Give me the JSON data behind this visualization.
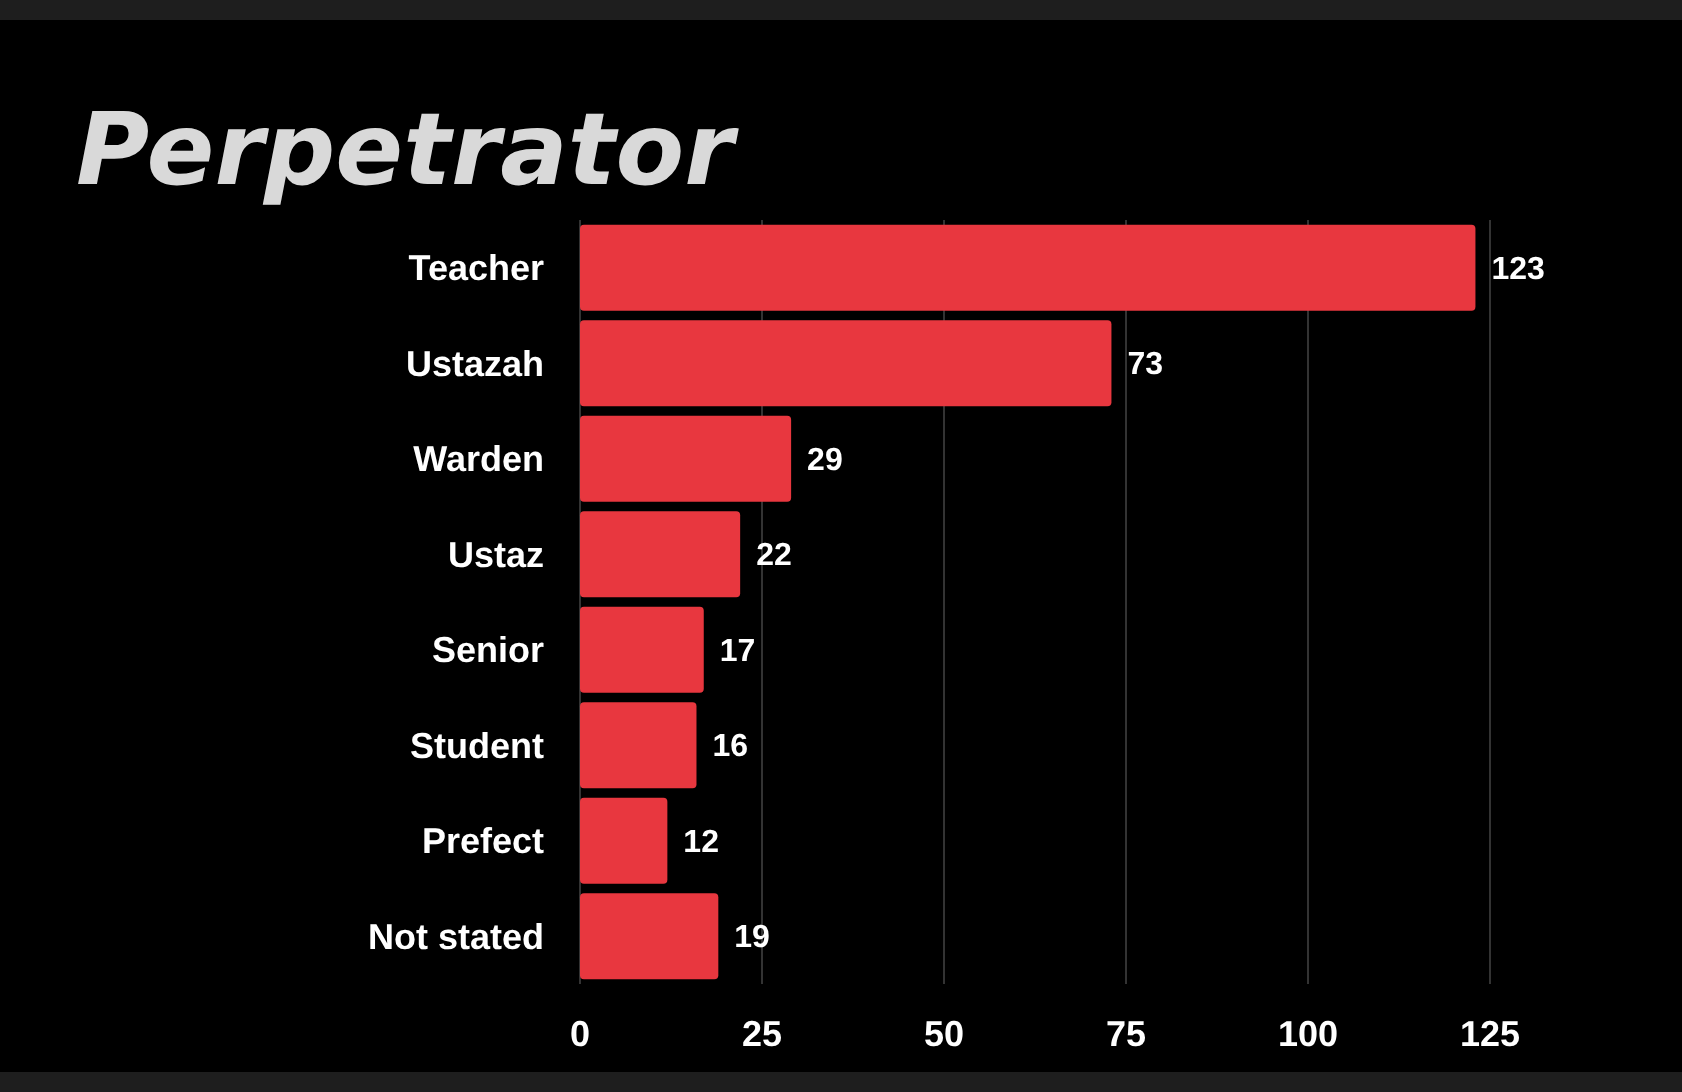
{
  "chart_data": {
    "type": "bar",
    "orientation": "horizontal",
    "title": "Perpetrator",
    "categories": [
      "Teacher",
      "Ustazah",
      "Warden",
      "Ustaz",
      "Senior",
      "Student",
      "Prefect",
      "Not stated"
    ],
    "values": [
      123,
      73,
      29,
      22,
      17,
      16,
      12,
      19
    ],
    "color": "#e8373f",
    "data_labels": true,
    "grid": "x",
    "xlim": [
      0,
      125
    ],
    "xticks": [
      0,
      25,
      50,
      75,
      100,
      125
    ]
  }
}
